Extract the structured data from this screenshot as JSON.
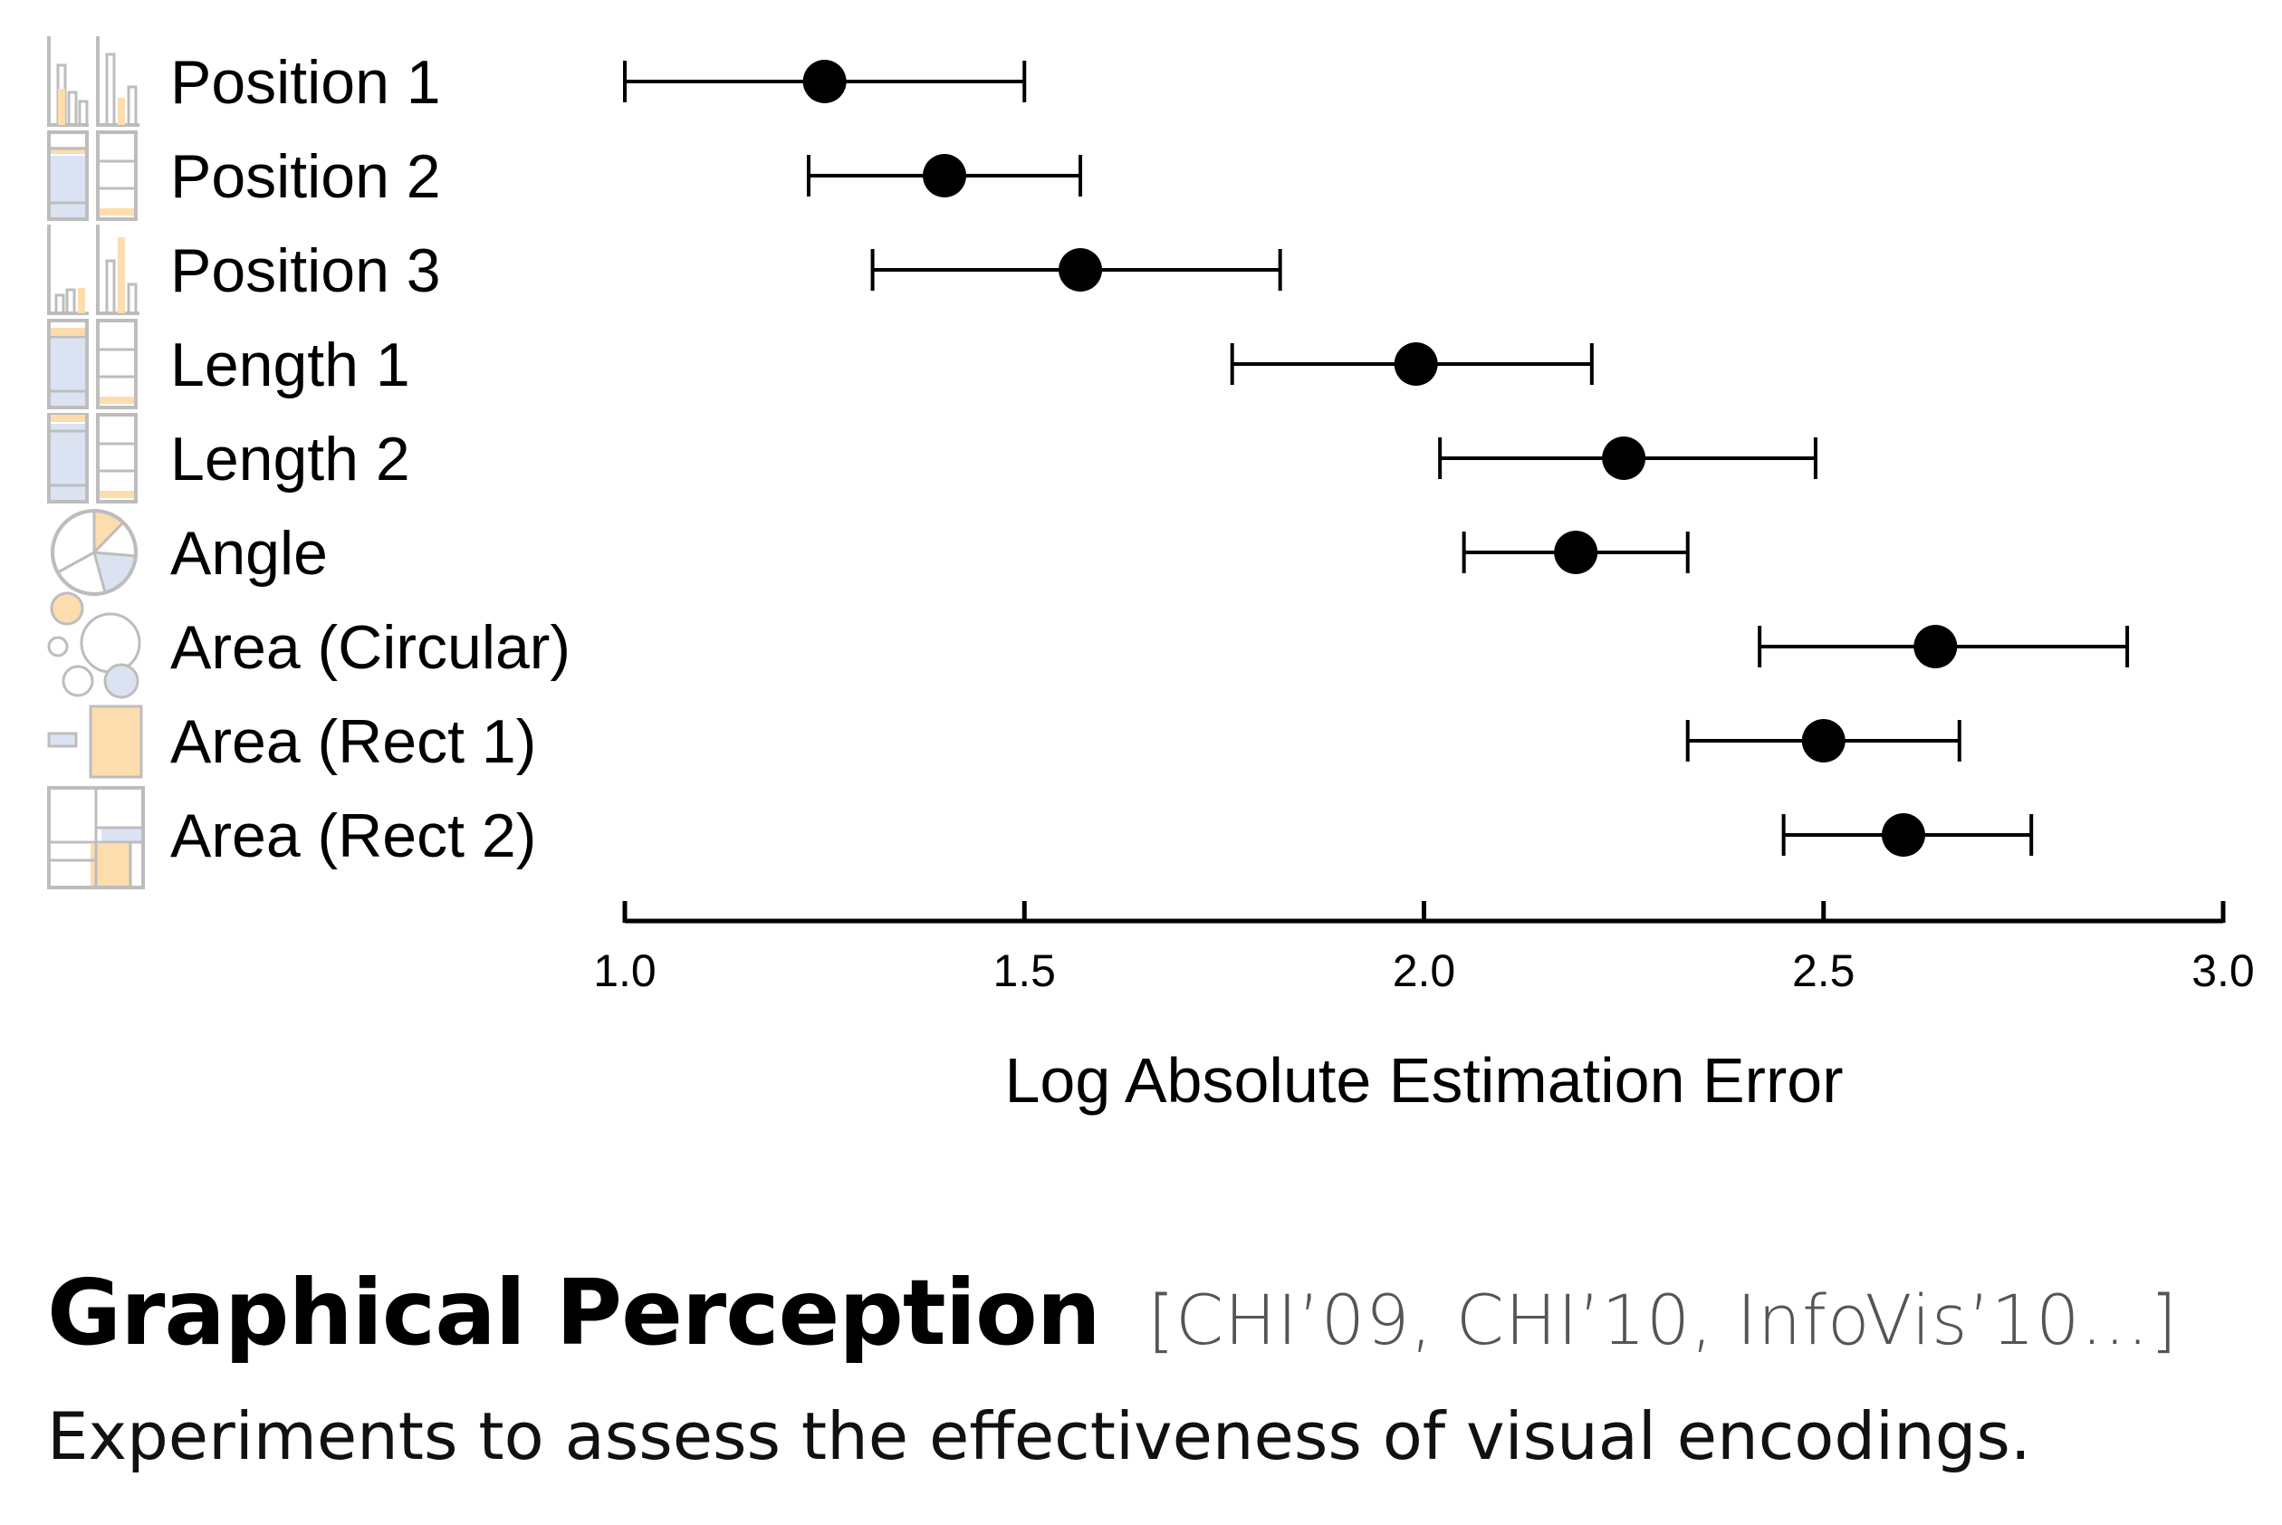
{
  "chart_data": {
    "type": "dot-errorbar",
    "categories": [
      "Position 1",
      "Position 2",
      "Position 3",
      "Length 1",
      "Length 2",
      "Angle",
      "Area (Circular)",
      "Area (Rect 1)",
      "Area (Rect 2)"
    ],
    "category_icons": [
      "bar-chart-icon",
      "stacked-bar-icon",
      "bar-chart-icon",
      "stacked-bar-icon",
      "stacked-bar-icon",
      "pie-chart-icon",
      "bubbles-icon",
      "rectangles-icon",
      "treemap-icon"
    ],
    "series": [
      {
        "mean": [
          1.25,
          1.4,
          1.57,
          1.99,
          2.25,
          2.19,
          2.64,
          2.5,
          2.6
        ],
        "ci_low": [
          1.0,
          1.23,
          1.31,
          1.76,
          2.02,
          2.05,
          2.42,
          2.33,
          2.45
        ],
        "ci_high": [
          1.5,
          1.57,
          1.82,
          2.21,
          2.49,
          2.33,
          2.88,
          2.67,
          2.76
        ]
      }
    ],
    "xlim": [
      1.0,
      3.0
    ],
    "xticks": [
      "1.0",
      "1.5",
      "2.0",
      "2.5",
      "3.0"
    ],
    "xlabel": "Log Absolute Estimation Error",
    "ylabel": "",
    "grid": false,
    "colors": {
      "marker": "#000000",
      "icon_outline": "#bdbdbd",
      "icon_orange": "#fddcae",
      "icon_blue": "#dbe3f3"
    }
  },
  "footer": {
    "title": "Graphical Perception",
    "citation": "[CHI’09, CHI’10, InfoVis’10…]",
    "subtitle": "Experiments to assess the effectiveness of visual encodings."
  }
}
